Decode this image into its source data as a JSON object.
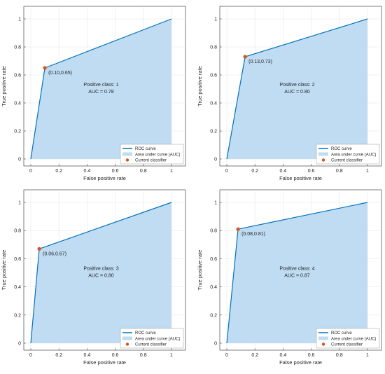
{
  "colors": {
    "roc_line": "#0072BD",
    "auc_fill": "#bfdcf2",
    "classifier": "#D95319",
    "grid": "#e6e6e6",
    "axis": "#262626"
  },
  "chart_data": [
    {
      "type": "area",
      "xlabel": "False positive rate",
      "ylabel": "True positive rate",
      "xlim": [
        0,
        1
      ],
      "ylim": [
        0,
        1
      ],
      "xticks": [
        "0",
        "0.2",
        "0.4",
        "0.6",
        "0.8",
        "1"
      ],
      "yticks": [
        "0",
        "0.2",
        "0.4",
        "0.6",
        "0.8",
        "1"
      ],
      "grid": true,
      "roc": {
        "x": [
          0,
          0.1,
          1
        ],
        "y": [
          0,
          0.65,
          1
        ]
      },
      "classifier": {
        "x": 0.1,
        "y": 0.65,
        "label": "(0.10,0.65)"
      },
      "annotation": [
        "Positive class: 1",
        "AUC = 0.78"
      ],
      "legend": {
        "position": "bottom-right",
        "entries": [
          "ROC curve",
          "Area under curve (AUC)",
          "Current classifier"
        ]
      }
    },
    {
      "type": "area",
      "xlabel": "False positive rate",
      "ylabel": "True positive rate",
      "xlim": [
        0,
        1
      ],
      "ylim": [
        0,
        1
      ],
      "xticks": [
        "0",
        "0.2",
        "0.4",
        "0.6",
        "0.8",
        "1"
      ],
      "yticks": [
        "0",
        "0.2",
        "0.4",
        "0.6",
        "0.8",
        "1"
      ],
      "grid": true,
      "roc": {
        "x": [
          0,
          0.13,
          1
        ],
        "y": [
          0,
          0.73,
          1
        ]
      },
      "classifier": {
        "x": 0.13,
        "y": 0.73,
        "label": "(0.13,0.73)"
      },
      "annotation": [
        "Positive class: 2",
        "AUC = 0.80"
      ],
      "legend": {
        "position": "bottom-right",
        "entries": [
          "ROC curve",
          "Area under curve (AUC)",
          "Current classifier"
        ]
      }
    },
    {
      "type": "area",
      "xlabel": "False positive rate",
      "ylabel": "True positive rate",
      "xlim": [
        0,
        1
      ],
      "ylim": [
        0,
        1
      ],
      "xticks": [
        "0",
        "0.2",
        "0.4",
        "0.6",
        "0.8",
        "1"
      ],
      "yticks": [
        "0",
        "0.2",
        "0.4",
        "0.6",
        "0.8",
        "1"
      ],
      "grid": true,
      "roc": {
        "x": [
          0,
          0.06,
          1
        ],
        "y": [
          0,
          0.67,
          1
        ]
      },
      "classifier": {
        "x": 0.06,
        "y": 0.67,
        "label": "(0.06,0.67)"
      },
      "annotation": [
        "Positive class: 3",
        "AUC = 0.80"
      ],
      "legend": {
        "position": "bottom-right",
        "entries": [
          "ROC curve",
          "Area under curve (AUC)",
          "Current classifier"
        ]
      }
    },
    {
      "type": "area",
      "xlabel": "False positive rate",
      "ylabel": "True positive rate",
      "xlim": [
        0,
        1
      ],
      "ylim": [
        0,
        1
      ],
      "xticks": [
        "0",
        "0.2",
        "0.4",
        "0.6",
        "0.8",
        "1"
      ],
      "yticks": [
        "0",
        "0.2",
        "0.4",
        "0.6",
        "0.8",
        "1"
      ],
      "grid": true,
      "roc": {
        "x": [
          0,
          0.08,
          1
        ],
        "y": [
          0,
          0.81,
          1
        ]
      },
      "classifier": {
        "x": 0.08,
        "y": 0.81,
        "label": "(0.08,0.81)"
      },
      "annotation": [
        "Positive class: 4",
        "AUC = 0.87"
      ],
      "legend": {
        "position": "bottom-right",
        "entries": [
          "ROC curve",
          "Area under curve (AUC)",
          "Current classifier"
        ]
      }
    }
  ]
}
